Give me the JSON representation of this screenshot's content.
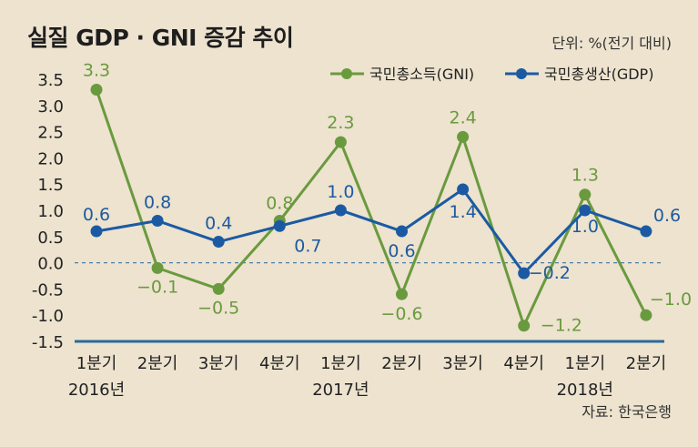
{
  "title": "실질 GDP · GNI 증감 추이",
  "unit": "단위: %(전기 대비)",
  "source": "자료: 한국은행",
  "colors": {
    "gni": "#6a9a3e",
    "gdp": "#1b5aa3",
    "zero_line": "#4a7fa6",
    "axis": "#2a6a9a"
  },
  "chart_data": {
    "type": "line",
    "categories": [
      "1분기",
      "2분기",
      "3분기",
      "4분기",
      "1분기",
      "2분기",
      "3분기",
      "4분기",
      "1분기",
      "2분기"
    ],
    "year_labels": [
      "2016년",
      "",
      "",
      "",
      "2017년",
      "",
      "",
      "",
      "2018년",
      ""
    ],
    "series": [
      {
        "name": "국민총소득(GNI)",
        "values": [
          3.3,
          -0.1,
          -0.5,
          0.8,
          2.3,
          -0.6,
          2.4,
          -1.2,
          1.3,
          -1.0
        ],
        "labels": [
          "3.3",
          "−0.1",
          "−0.5",
          "0.8",
          "2.3",
          "−0.6",
          "2.4",
          "−1.2",
          "1.3",
          "−1.0"
        ]
      },
      {
        "name": "국민총생산(GDP)",
        "values": [
          0.6,
          0.8,
          0.4,
          0.7,
          1.0,
          0.6,
          1.4,
          -0.2,
          1.0,
          0.6
        ],
        "labels": [
          "0.6",
          "0.8",
          "0.4",
          "0.7",
          "1.0",
          "0.6",
          "1.4",
          "−0.2",
          "1.0",
          "0.6"
        ]
      }
    ],
    "y_ticks": [
      "3.5",
      "3.0",
      "2.5",
      "2.0",
      "1.5",
      "1.0",
      "0.5",
      "0.0",
      "-0.5",
      "-1.0",
      "-1.5"
    ],
    "ylim": [
      -1.5,
      3.5
    ],
    "legend_position": "top-right"
  }
}
